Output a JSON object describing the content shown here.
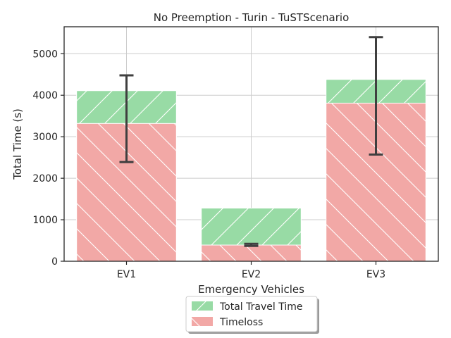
{
  "chart_data": {
    "type": "bar",
    "title": "No Preemption - Turin - TuSTScenario",
    "xlabel": "Emergency Vehicles",
    "ylabel": "Total Time (s)",
    "categories": [
      "EV1",
      "EV2",
      "EV3"
    ],
    "ylim": [
      0,
      5650
    ],
    "yticks": [
      0,
      1000,
      2000,
      3000,
      4000,
      5000
    ],
    "grid": true,
    "legend_position": "bottom-center",
    "series": [
      {
        "name": "Total Travel Time",
        "values": [
          4110,
          1280,
          4380
        ],
        "color": "#98dba5",
        "hatch": "forward-slash"
      },
      {
        "name": "Timeloss",
        "values": [
          3320,
          390,
          3810
        ],
        "color": "#f2a8a6",
        "hatch": "back-slash",
        "error": [
          {
            "low": 2390,
            "high": 4480
          },
          {
            "low": 370,
            "high": 420
          },
          {
            "low": 2570,
            "high": 5400
          }
        ]
      }
    ]
  }
}
